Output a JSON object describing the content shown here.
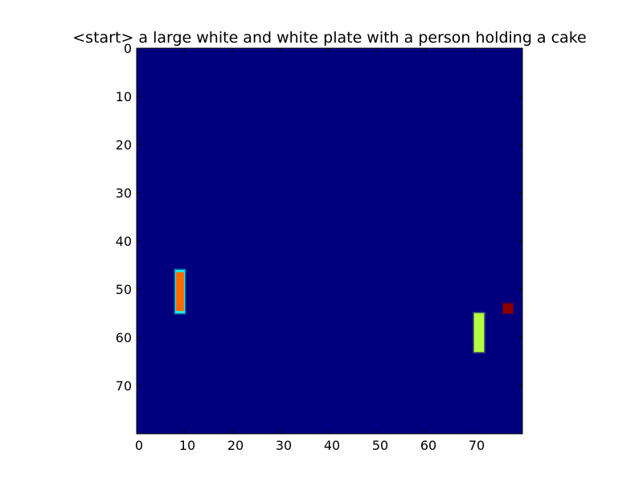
{
  "chart_data": {
    "type": "heatmap",
    "title": "<start> a large white and white plate with a person holding a cake",
    "xlabel": "",
    "ylabel": "",
    "xlim": [
      0,
      80
    ],
    "ylim": [
      0,
      80
    ],
    "y_inverted": true,
    "x_ticks": [
      0,
      10,
      20,
      30,
      40,
      50,
      60,
      70
    ],
    "y_ticks": [
      0,
      10,
      20,
      30,
      40,
      50,
      60,
      70
    ],
    "colormap": "jet",
    "background_color": "#00007f",
    "grid": false,
    "legend": "none",
    "regions": [
      {
        "x": [
          8,
          10
        ],
        "y": [
          46,
          55
        ],
        "value": 0.85,
        "edge_value": 0.45,
        "color": "#ff6a00",
        "edge_color": "#22e8e0"
      },
      {
        "x": [
          70,
          72
        ],
        "y": [
          55,
          63
        ],
        "value": 0.62,
        "edge_value": 0.6,
        "color": "#b5ff40",
        "edge_color": "#b5ff40"
      },
      {
        "x": [
          76,
          78
        ],
        "y": [
          53,
          55
        ],
        "value": 1.0,
        "edge_value": 1.0,
        "color": "#8b0000",
        "edge_color": "#8b0000"
      }
    ]
  }
}
